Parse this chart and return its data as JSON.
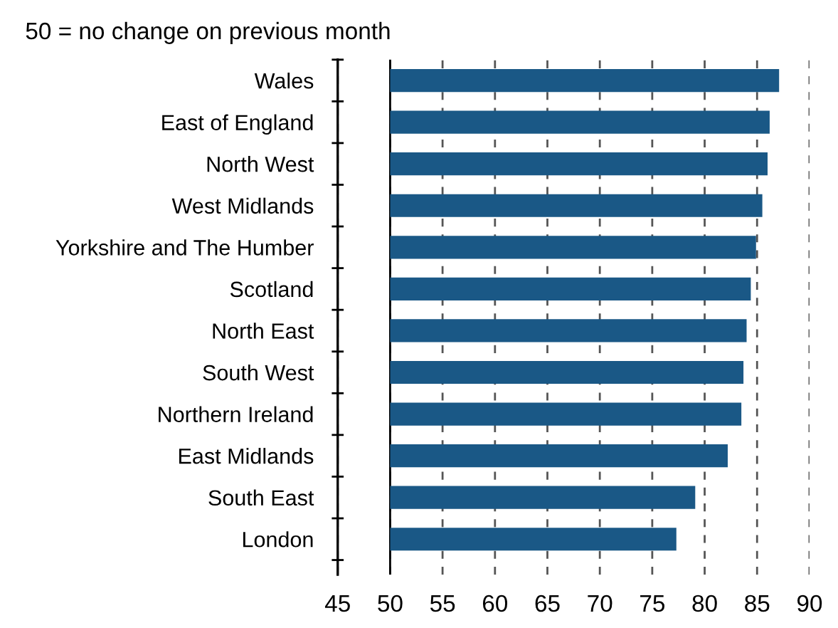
{
  "chart_data": {
    "type": "bar",
    "orientation": "horizontal",
    "title": "50 = no change on previous month",
    "categories": [
      "Wales",
      "East of England",
      "North West",
      "West Midlands",
      "Yorkshire and The Humber",
      "Scotland",
      "North East",
      "South West",
      "Northern Ireland",
      "East Midlands",
      "South East",
      "London"
    ],
    "base": [
      50,
      50,
      50,
      50,
      50,
      50,
      50,
      50,
      50,
      50,
      50,
      50
    ],
    "values": [
      37.1,
      36.2,
      36.0,
      35.5,
      34.9,
      34.4,
      34.0,
      33.7,
      33.5,
      32.2,
      29.1,
      27.3
    ],
    "color": "#1a5886",
    "xlim": [
      45,
      90
    ],
    "xticks": [
      45,
      50,
      55,
      60,
      65,
      70,
      75,
      80,
      85,
      90
    ],
    "grid": "x",
    "line_style": "dashed",
    "ref_lines": [
      {
        "axis": "x",
        "value": 50,
        "color": "#000000",
        "line_style": "solid"
      }
    ]
  }
}
